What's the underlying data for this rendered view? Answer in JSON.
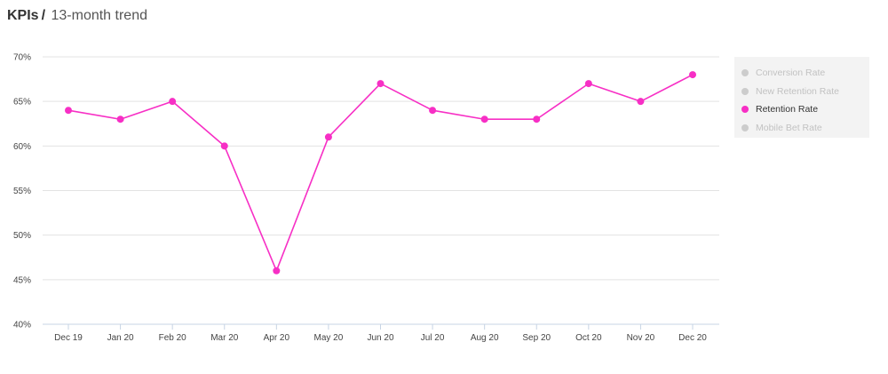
{
  "header": {
    "title": "KPIs",
    "separator": "/",
    "subtitle": "13-month trend"
  },
  "legend": {
    "items": [
      {
        "label": "Conversion Rate",
        "active": false,
        "color": "#cccccc"
      },
      {
        "label": "New Retention Rate",
        "active": false,
        "color": "#cccccc"
      },
      {
        "label": "Retention Rate",
        "active": true,
        "color": "#f72fc5"
      },
      {
        "label": "Mobile Bet Rate",
        "active": false,
        "color": "#cccccc"
      }
    ]
  },
  "chart_data": {
    "type": "line",
    "title": "",
    "xlabel": "",
    "ylabel": "",
    "categories": [
      "Dec 19",
      "Jan 20",
      "Feb 20",
      "Mar 20",
      "Apr 20",
      "May 20",
      "Jun 20",
      "Jul 20",
      "Aug 20",
      "Sep 20",
      "Oct 20",
      "Nov 20",
      "Dec 20"
    ],
    "ylim": [
      40,
      70
    ],
    "yticks": [
      40,
      45,
      50,
      55,
      60,
      65,
      70
    ],
    "ytick_labels": [
      "40%",
      "45%",
      "50%",
      "55%",
      "60%",
      "65%",
      "70%"
    ],
    "grid": true,
    "legend_position": "right",
    "series": [
      {
        "name": "Retention Rate",
        "color": "#f72fc5",
        "values": [
          64,
          63,
          65,
          60,
          46,
          61,
          67,
          64,
          63,
          63,
          67,
          65,
          68
        ]
      }
    ]
  }
}
